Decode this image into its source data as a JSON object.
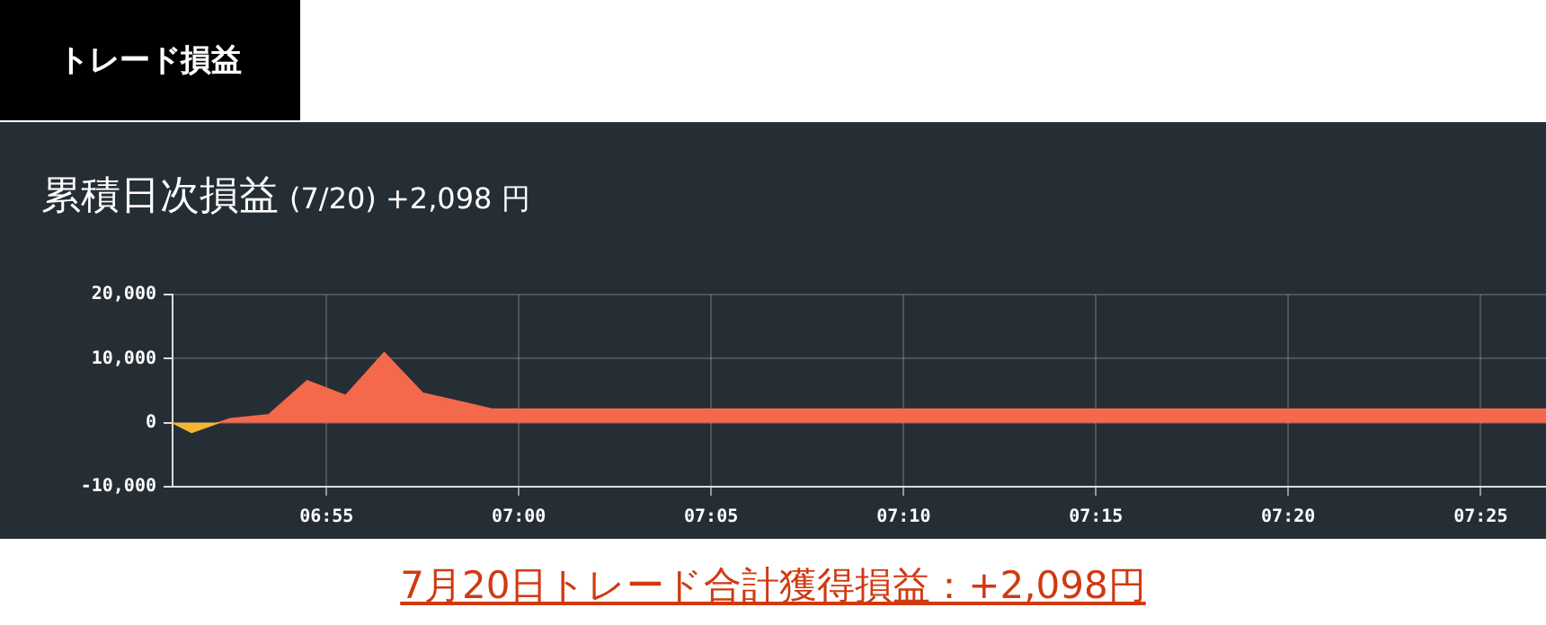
{
  "chart_data": {
    "type": "area",
    "title": "累積日次損益",
    "subtitle": "(7/20) +2,098 円",
    "annotations": [
      "トレード損益",
      "7月20日トレード合計獲得損益：+2,098円"
    ],
    "xlim": [
      6.85,
      7.445
    ],
    "xticks": [
      {
        "value": 6.9167,
        "label": "06:55"
      },
      {
        "value": 7,
        "label": "07:00"
      },
      {
        "value": 7.0833,
        "label": "07:05"
      },
      {
        "value": 7.1667,
        "label": "07:10"
      },
      {
        "value": 7.25,
        "label": "07:15"
      },
      {
        "value": 7.3333,
        "label": "07:20"
      },
      {
        "value": 7.4167,
        "label": "07:25"
      }
    ],
    "ylim": [
      -10000,
      20000
    ],
    "yticks": [
      {
        "value": -10000,
        "label": "-10,000"
      },
      {
        "value": 0,
        "label": "0"
      },
      {
        "value": 10000,
        "label": "10,000"
      },
      {
        "value": 20000,
        "label": "20,000"
      }
    ],
    "grid": true,
    "series": [
      {
        "color": "#f5b731",
        "x": [
          6.85,
          6.8583,
          6.87
        ],
        "values": [
          0,
          -1500,
          0
        ]
      },
      {
        "color": "#f4694b",
        "x": [
          6.87,
          6.875,
          6.8917,
          6.9083,
          6.925,
          6.9417,
          6.9583,
          6.975,
          6.9883,
          7.445
        ],
        "values": [
          0,
          600,
          1200,
          6500,
          4200,
          10900,
          4600,
          3200,
          2098,
          2098
        ]
      }
    ]
  }
}
